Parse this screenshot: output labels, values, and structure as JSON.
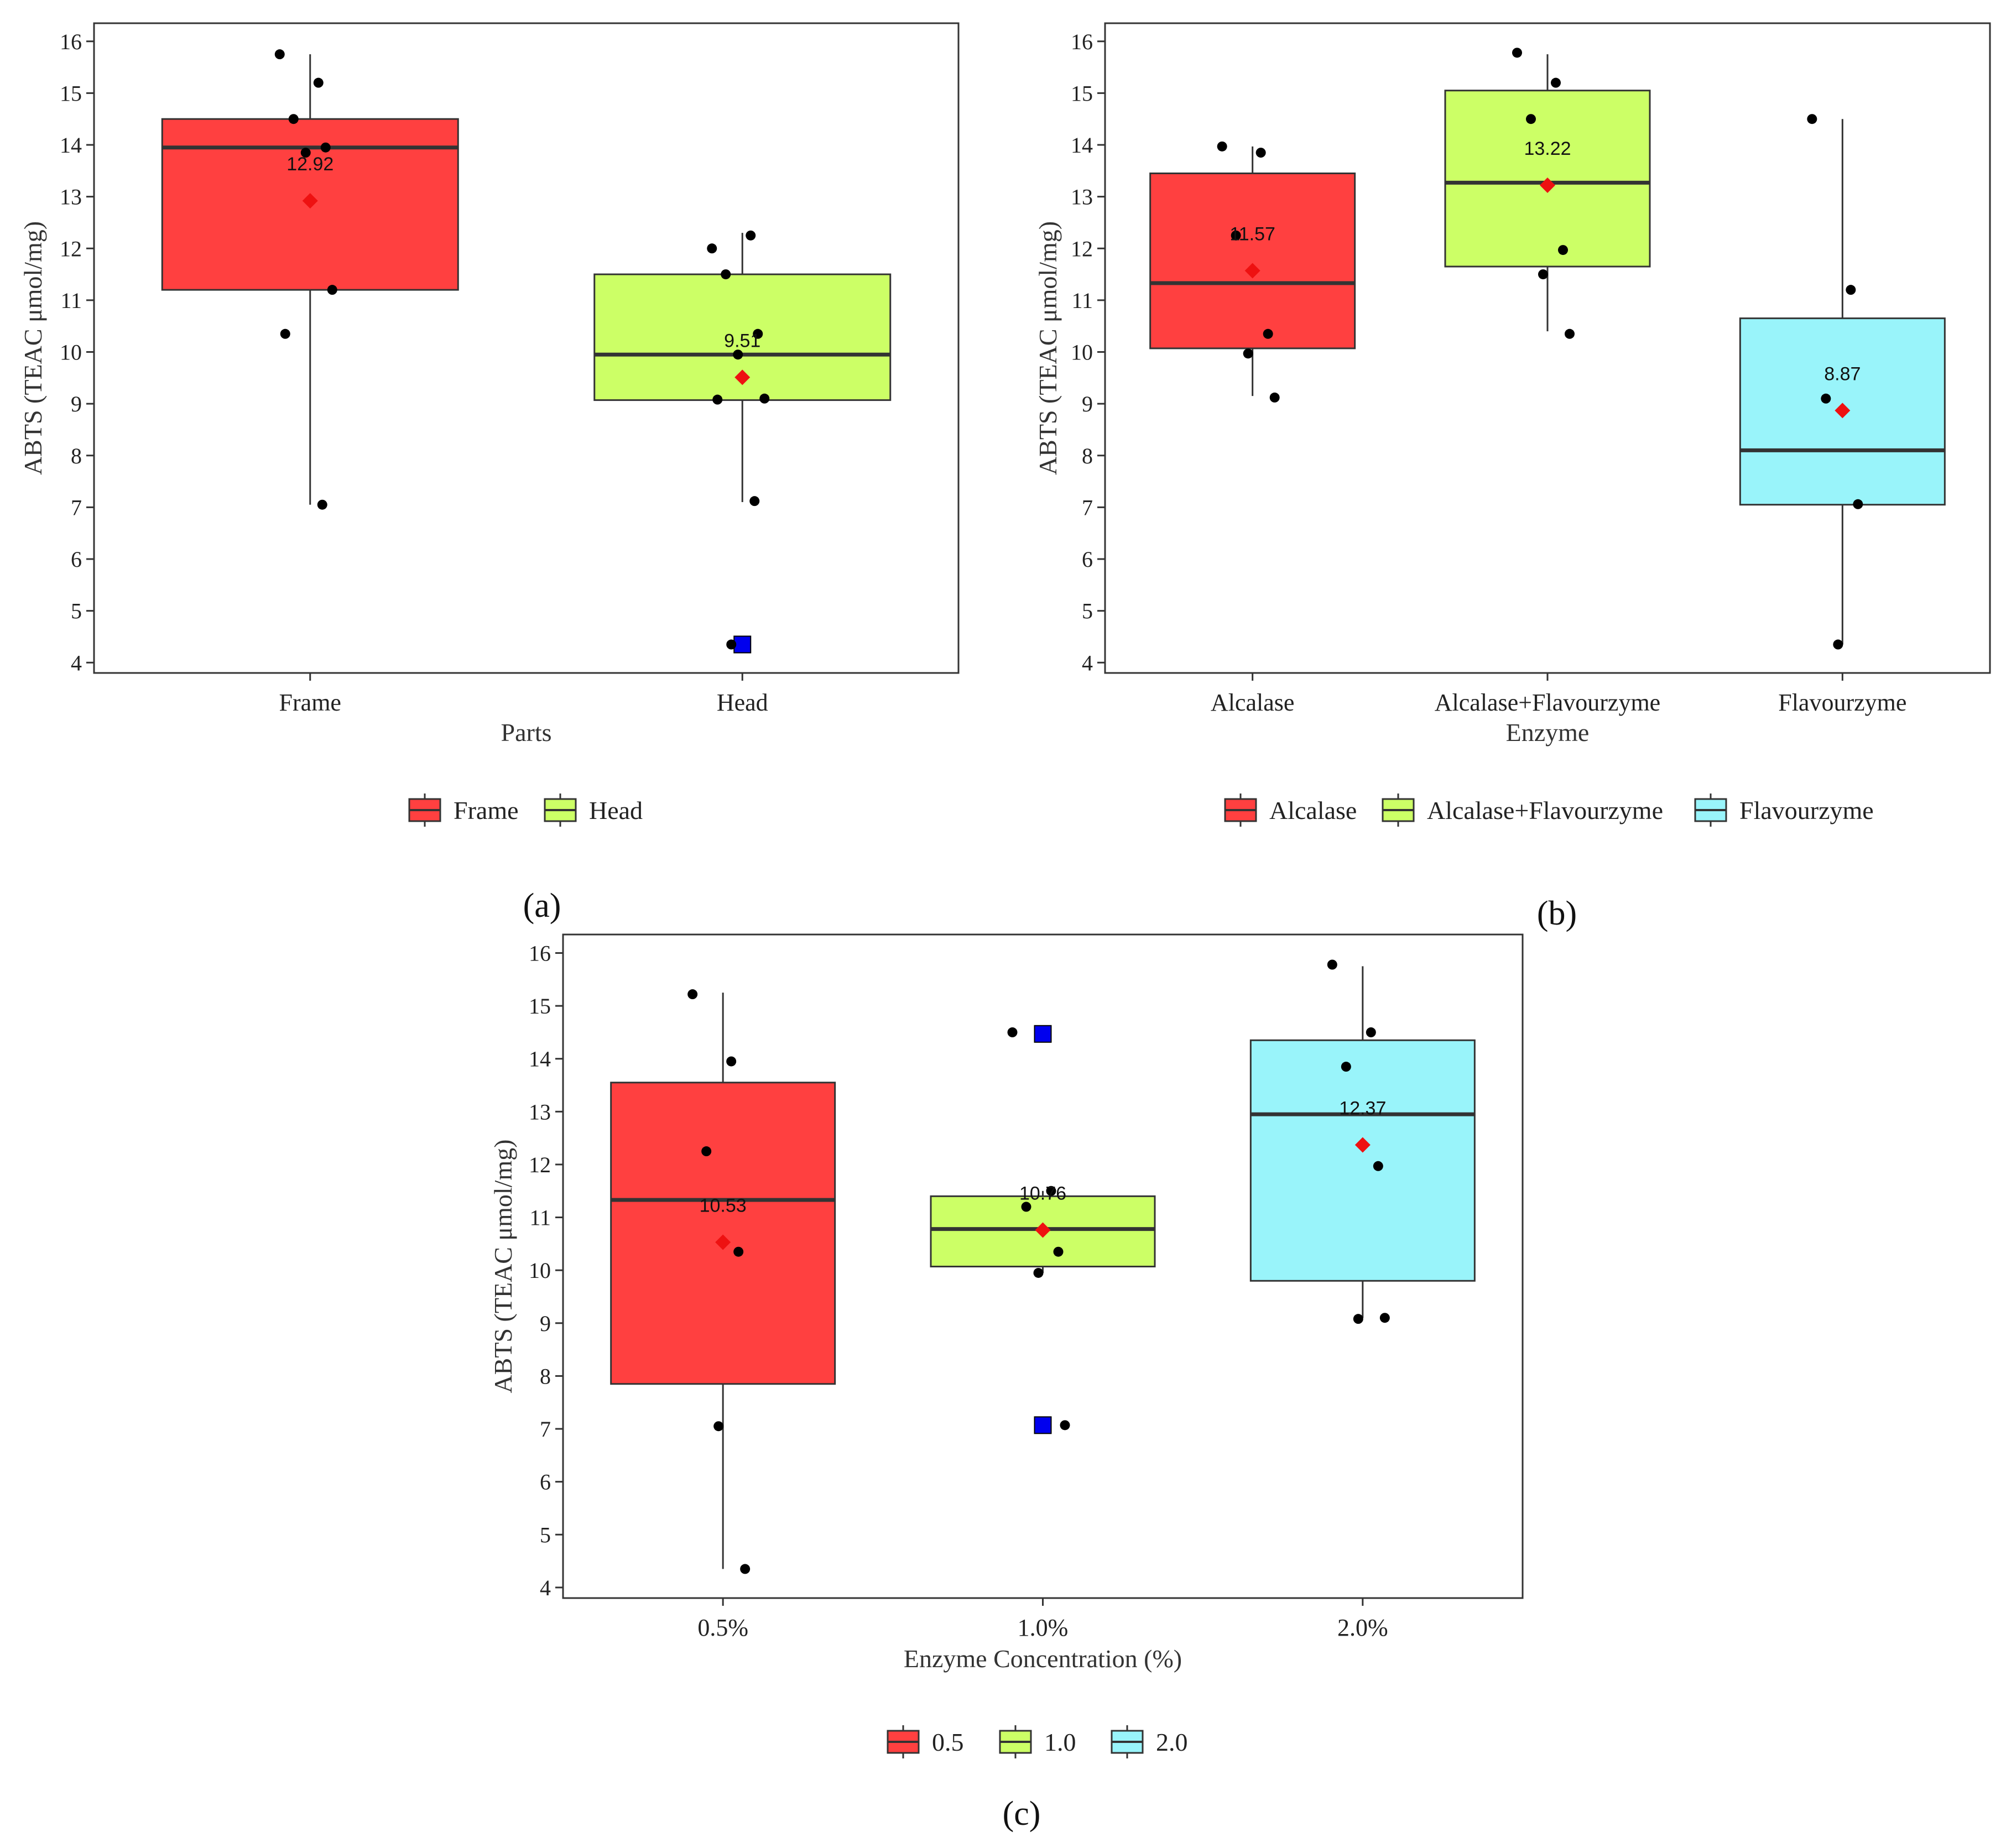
{
  "colors": {
    "red": "#FF4040",
    "green": "#CCFF66",
    "cyan": "#99F4FA",
    "mean": "#EE1111",
    "outlier": "#0000EE",
    "point": "#000000"
  },
  "chart_data": [
    {
      "type": "box",
      "panel_label": "(a)",
      "xlabel": "Parts",
      "ylabel": "ABTS (TEAC μmol/mg)",
      "ylim": [
        3.8,
        16.35
      ],
      "yticks": [
        4,
        5,
        6,
        7,
        8,
        9,
        10,
        11,
        12,
        13,
        14,
        15,
        16
      ],
      "legend": {
        "position": "bottom",
        "entries": [
          "Frame",
          "Head"
        ]
      },
      "groups": [
        {
          "label": "Frame",
          "color": "#FF4040",
          "q1": 11.2,
          "median": 13.95,
          "q3": 14.5,
          "whisker_low": 7.05,
          "whisker_high": 15.75,
          "mean": 12.92,
          "mean_label": "12.92",
          "points": [
            15.75,
            15.2,
            14.5,
            13.95,
            13.85,
            11.2,
            10.35,
            7.05
          ],
          "outliers": []
        },
        {
          "label": "Head",
          "color": "#CCFF66",
          "q1": 9.07,
          "median": 9.95,
          "q3": 11.5,
          "whisker_low": 7.1,
          "whisker_high": 12.3,
          "mean": 9.51,
          "mean_label": "9.51",
          "points": [
            12.0,
            12.25,
            11.5,
            10.35,
            9.95,
            9.1,
            9.08,
            7.12,
            4.35
          ],
          "outliers": [
            4.35
          ]
        }
      ]
    },
    {
      "type": "box",
      "panel_label": "(b)",
      "xlabel": "Enzyme",
      "ylabel": "ABTS (TEAC μmol/mg)",
      "ylim": [
        3.8,
        16.35
      ],
      "yticks": [
        4,
        5,
        6,
        7,
        8,
        9,
        10,
        11,
        12,
        13,
        14,
        15,
        16
      ],
      "legend": {
        "position": "bottom",
        "entries": [
          "Alcalase",
          "Alcalase+Flavourzyme",
          "Flavourzyme"
        ]
      },
      "groups": [
        {
          "label": "Alcalase",
          "color": "#FF4040",
          "q1": 10.07,
          "median": 11.33,
          "q3": 13.45,
          "whisker_low": 9.15,
          "whisker_high": 13.97,
          "mean": 11.57,
          "mean_label": "11.57",
          "points": [
            13.97,
            13.85,
            12.25,
            10.35,
            9.97,
            9.12
          ],
          "outliers": []
        },
        {
          "label": "Alcalase+Flavourzyme",
          "color": "#CCFF66",
          "q1": 11.65,
          "median": 13.27,
          "q3": 15.05,
          "whisker_low": 10.4,
          "whisker_high": 15.75,
          "mean": 13.22,
          "mean_label": "13.22",
          "points": [
            15.78,
            15.2,
            14.5,
            11.97,
            11.5,
            10.35
          ],
          "outliers": []
        },
        {
          "label": "Flavourzyme",
          "color": "#99F4FA",
          "q1": 7.05,
          "median": 8.1,
          "q3": 10.65,
          "whisker_low": 4.35,
          "whisker_high": 14.5,
          "mean": 8.87,
          "mean_label": "8.87",
          "points": [
            14.5,
            11.2,
            9.1,
            7.06,
            4.35
          ],
          "outliers": []
        }
      ]
    },
    {
      "type": "box",
      "panel_label": "(c)",
      "xlabel": "Enzyme Concentration (%)",
      "ylabel": "ABTS (TEAC μmol/mg)",
      "ylim": [
        3.8,
        16.35
      ],
      "yticks": [
        4,
        5,
        6,
        7,
        8,
        9,
        10,
        11,
        12,
        13,
        14,
        15,
        16
      ],
      "legend": {
        "position": "bottom",
        "entries": [
          "0.5",
          "1.0",
          "2.0"
        ]
      },
      "groups": [
        {
          "label": "0.5%",
          "color": "#FF4040",
          "q1": 7.85,
          "median": 11.33,
          "q3": 13.55,
          "whisker_low": 4.35,
          "whisker_high": 15.25,
          "mean": 10.53,
          "mean_label": "10.53",
          "points": [
            15.22,
            13.95,
            12.25,
            10.35,
            7.05,
            4.35
          ],
          "outliers": []
        },
        {
          "label": "1.0%",
          "color": "#CCFF66",
          "q1": 10.07,
          "median": 10.78,
          "q3": 11.4,
          "whisker_low": 9.95,
          "whisker_high": 11.5,
          "mean": 10.76,
          "mean_label": "10.76",
          "points": [
            14.5,
            11.5,
            11.2,
            10.35,
            9.95,
            7.07
          ],
          "outliers": [
            14.47,
            7.07
          ]
        },
        {
          "label": "2.0%",
          "color": "#99F4FA",
          "q1": 9.8,
          "median": 12.95,
          "q3": 14.35,
          "whisker_low": 9.1,
          "whisker_high": 15.75,
          "mean": 12.37,
          "mean_label": "12.37",
          "points": [
            15.78,
            14.5,
            13.85,
            11.97,
            9.08,
            9.1
          ],
          "outliers": []
        }
      ]
    }
  ]
}
